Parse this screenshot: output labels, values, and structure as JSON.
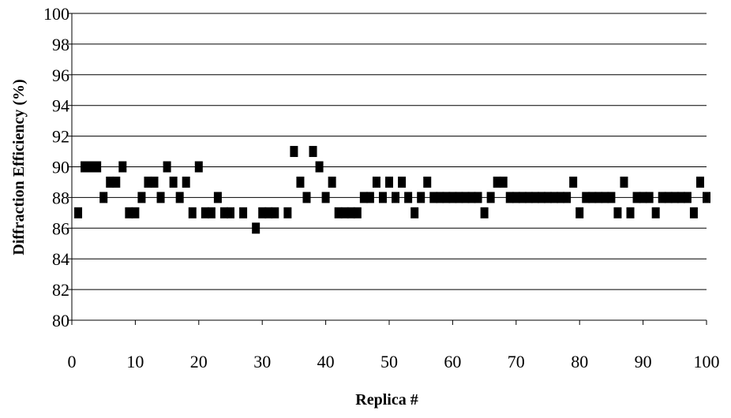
{
  "chart_data": {
    "type": "scatter",
    "xlabel": "Replica #",
    "ylabel": "Diffraction Efficiency (%)",
    "xlim": [
      0,
      100
    ],
    "ylim": [
      80,
      100
    ],
    "x_ticks": [
      0,
      10,
      20,
      30,
      40,
      50,
      60,
      70,
      80,
      90,
      100
    ],
    "y_ticks": [
      80,
      82,
      84,
      86,
      88,
      90,
      92,
      94,
      96,
      98,
      100
    ],
    "grid": "horizontal",
    "marker": "square",
    "marker_color": "#000000",
    "series": [
      {
        "x": [
          1,
          2,
          3,
          4,
          5,
          6,
          7,
          8,
          9,
          10,
          11,
          12,
          13,
          14,
          15,
          16,
          17,
          18,
          19,
          20,
          21,
          22,
          23,
          24,
          25,
          26,
          27,
          28,
          29,
          30,
          31,
          32,
          33,
          34,
          35,
          36,
          37,
          38,
          39,
          40,
          41,
          42,
          43,
          44,
          45,
          46,
          47,
          48,
          49,
          50,
          51,
          52,
          53,
          54,
          55,
          56,
          57,
          58,
          59,
          60,
          61,
          62,
          63,
          64,
          65,
          66,
          67,
          68,
          69,
          70,
          71,
          72,
          73,
          74,
          75,
          76,
          77,
          78,
          79,
          80,
          81,
          82,
          83,
          84,
          85,
          86,
          87,
          88,
          89,
          90,
          91,
          92,
          93,
          94,
          95,
          96,
          97,
          98,
          99,
          100
        ],
        "y": [
          87,
          90,
          90,
          90,
          88,
          89,
          89,
          90,
          87,
          87,
          88,
          89,
          89,
          88,
          90,
          89,
          88,
          89,
          87,
          90,
          87,
          87,
          88,
          87,
          87,
          null,
          87,
          null,
          86,
          87,
          87,
          87,
          null,
          87,
          91,
          89,
          88,
          91,
          90,
          88,
          89,
          87,
          87,
          87,
          87,
          88,
          88,
          89,
          88,
          89,
          88,
          89,
          88,
          87,
          88,
          89,
          88,
          88,
          88,
          88,
          88,
          88,
          88,
          88,
          87,
          88,
          89,
          89,
          88,
          88,
          88,
          88,
          88,
          88,
          88,
          88,
          88,
          88,
          89,
          87,
          88,
          88,
          88,
          88,
          88,
          87,
          89,
          87,
          88,
          88,
          88,
          87,
          88,
          88,
          88,
          88,
          88,
          87,
          89,
          88
        ]
      }
    ]
  }
}
